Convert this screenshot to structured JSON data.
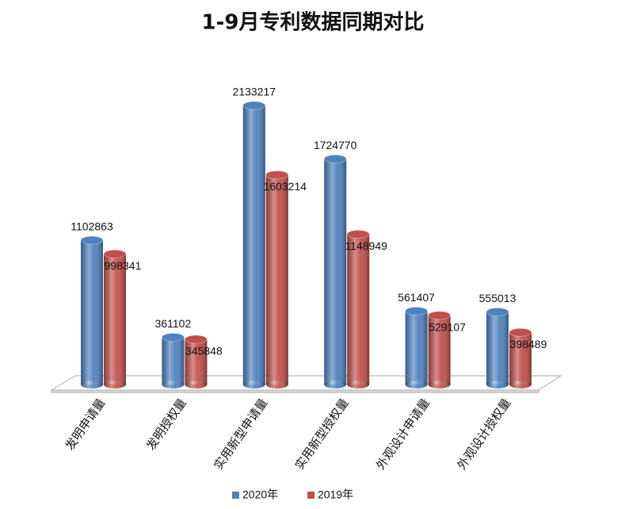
{
  "chart_data": {
    "type": "bar",
    "title": "1-9月专利数据同期对比",
    "categories": [
      "发明申请量",
      "发明授权量",
      "实用新型申请量",
      "实用新型授权量",
      "外观设计申请量",
      "外观设计授权量"
    ],
    "series": [
      {
        "name": "2020年",
        "color": "#4f81bd",
        "values": [
          1102863,
          361102,
          2133217,
          1724770,
          561407,
          555013
        ]
      },
      {
        "name": "2019年",
        "color": "#c0504d",
        "values": [
          998341,
          345848,
          1603214,
          1148949,
          529107,
          398489
        ]
      }
    ]
  }
}
